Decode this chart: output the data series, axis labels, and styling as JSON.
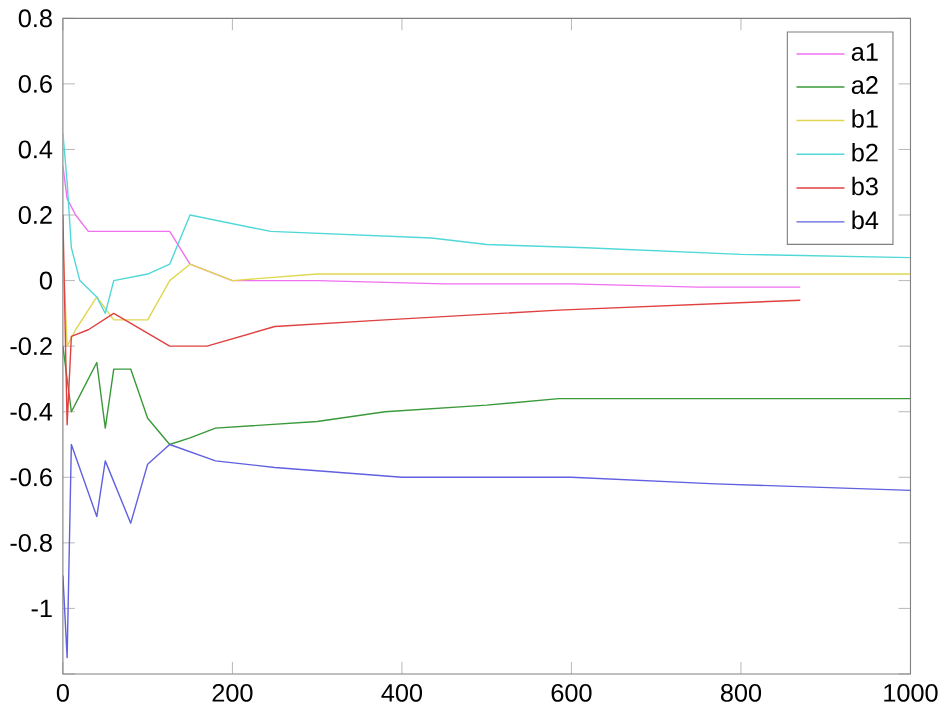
{
  "chart_data": {
    "type": "line",
    "xlim": [
      0,
      1000
    ],
    "ylim": [
      -1.2,
      0.8
    ],
    "xticks": [
      0,
      200,
      400,
      600,
      800,
      1000
    ],
    "yticks": [
      {
        "value": -1.2,
        "label": null
      },
      -1,
      -0.8,
      -0.6,
      -0.4,
      -0.2,
      0,
      0.2,
      0.4,
      0.6,
      0.8
    ],
    "grid": false,
    "legend": "top right",
    "series": [
      {
        "name": "a1",
        "color": "#f070f0",
        "x": [
          0,
          5,
          15,
          30,
          47,
          90,
          126,
          150,
          200,
          300,
          450,
          600,
          750,
          870
        ],
        "values": [
          0.35,
          0.25,
          0.2,
          0.15,
          0.15,
          0.15,
          0.15,
          0.05,
          0.0,
          0.0,
          -0.01,
          -0.01,
          -0.02,
          -0.02
        ]
      },
      {
        "name": "a2",
        "color": "#3a9a3a",
        "x": [
          0,
          10,
          20,
          40,
          50,
          60,
          80,
          100,
          126,
          150,
          180,
          300,
          380,
          500,
          585,
          800,
          1000
        ],
        "values": [
          -0.2,
          -0.4,
          -0.35,
          -0.25,
          -0.45,
          -0.27,
          -0.27,
          -0.42,
          -0.5,
          -0.48,
          -0.45,
          -0.43,
          -0.4,
          -0.38,
          -0.36,
          -0.36,
          -0.36
        ]
      },
      {
        "name": "b1",
        "color": "#e0d850",
        "x": [
          0,
          5,
          15,
          40,
          60,
          100,
          126,
          150,
          200,
          300,
          500,
          700,
          1000
        ],
        "values": [
          0.1,
          -0.2,
          -0.15,
          -0.05,
          -0.12,
          -0.12,
          0.0,
          0.05,
          0.0,
          0.02,
          0.02,
          0.02,
          0.02
        ]
      },
      {
        "name": "b2",
        "color": "#50d8d8",
        "x": [
          0,
          5,
          10,
          20,
          40,
          50,
          60,
          100,
          126,
          150,
          245,
          435,
          500,
          617,
          800,
          1000
        ],
        "values": [
          0.45,
          0.3,
          0.1,
          0.0,
          -0.05,
          -0.1,
          0.0,
          0.02,
          0.05,
          0.2,
          0.15,
          0.13,
          0.11,
          0.1,
          0.08,
          0.07
        ]
      },
      {
        "name": "b3",
        "color": "#e04040",
        "x": [
          0,
          5,
          10,
          30,
          60,
          126,
          170,
          250,
          380,
          585,
          870
        ],
        "values": [
          0.2,
          -0.44,
          -0.17,
          -0.15,
          -0.1,
          -0.2,
          -0.2,
          -0.14,
          -0.12,
          -0.09,
          -0.06
        ]
      },
      {
        "name": "b4",
        "color": "#6060e0",
        "x": [
          0,
          5,
          10,
          40,
          50,
          80,
          100,
          126,
          180,
          250,
          300,
          400,
          600,
          770,
          1000
        ],
        "values": [
          -0.9,
          -1.15,
          -0.5,
          -0.72,
          -0.55,
          -0.74,
          -0.56,
          -0.5,
          -0.55,
          -0.57,
          -0.58,
          -0.6,
          -0.6,
          -0.62,
          -0.64
        ]
      }
    ]
  }
}
